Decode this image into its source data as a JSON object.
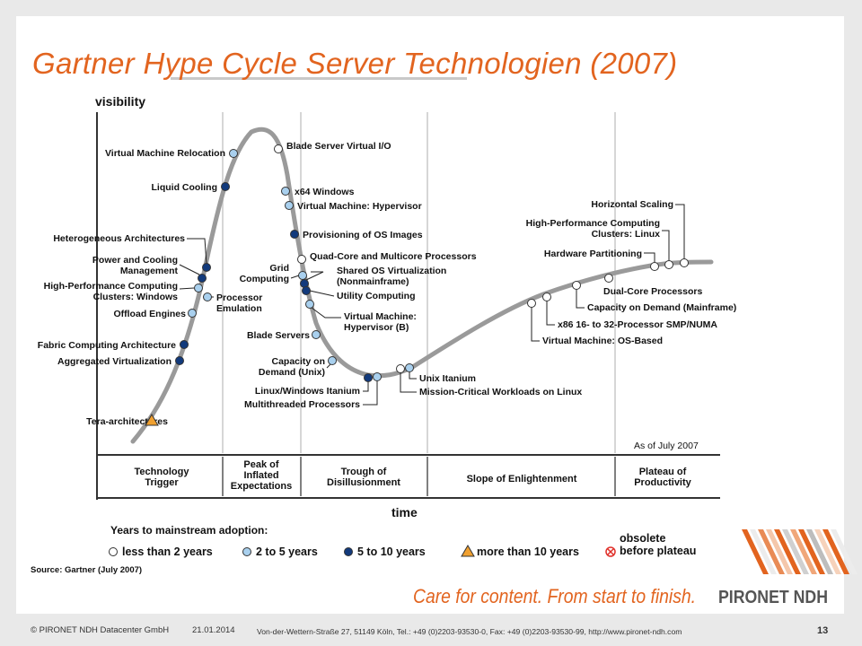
{
  "slide": {
    "title": "Gartner Hype Cycle Server Technologien (2007)",
    "page_number": "13",
    "footer_copyright": "© PIRONET NDH Datacenter GmbH",
    "footer_date": "21.01.2014",
    "footer_address": "Von-der-Wettern-Straße 27, 51149 Köln, Tel.: +49 (0)2203-93530-0, Fax: +49 (0)2203-93530-99, http://www.pironet-ndh.com",
    "tagline": "Care for content. From start to finish.",
    "logo_text": "PIRONET NDH"
  },
  "diagram": {
    "y_axis_label": "visibility",
    "x_axis_label": "time",
    "as_of": "As of July 2007",
    "source": "Source: Gartner (July 2007)",
    "phases": [
      "Technology\nTrigger",
      "Peak of\nInflated\nExpectations",
      "Trough of\nDisillusionment",
      "Slope of Enlightenment",
      "Plateau of\nProductivity"
    ],
    "legend": {
      "title": "Years to mainstream adoption:",
      "items": [
        {
          "label": "less than 2 years",
          "marker": "white-circle"
        },
        {
          "label": "2 to 5 years",
          "marker": "lightblue-circle"
        },
        {
          "label": "5 to 10 years",
          "marker": "darkblue-circle"
        },
        {
          "label": "more than 10 years",
          "marker": "orange-triangle"
        },
        {
          "label": "obsolete\nbefore plateau",
          "marker": "red-x-circle"
        }
      ]
    },
    "colors": {
      "less_than_2": "#ffffff",
      "two_to_five": "#a9d0ee",
      "five_to_ten": "#123a7c",
      "more_than_ten": "#f0a030",
      "obsolete": "#e0302a",
      "curve": "#9a9a9a",
      "title_orange": "#e2641f"
    },
    "technologies": [
      {
        "label": "Tera-architectures",
        "cat": "more_than_ten"
      },
      {
        "label": "Aggregated Virtualization",
        "cat": "five_to_ten"
      },
      {
        "label": "Fabric Computing Architecture",
        "cat": "five_to_ten"
      },
      {
        "label": "Offload Engines",
        "cat": "two_to_five"
      },
      {
        "label": "High-Performance Computing\nClusters: Windows",
        "cat": "two_to_five"
      },
      {
        "label": "Power and Cooling\nManagement",
        "cat": "five_to_ten"
      },
      {
        "label": "Heterogeneous Architectures",
        "cat": "five_to_ten"
      },
      {
        "label": "Liquid Cooling",
        "cat": "five_to_ten"
      },
      {
        "label": "Virtual Machine Relocation",
        "cat": "two_to_five"
      },
      {
        "label": "Blade Server Virtual I/O",
        "cat": "less_than_2"
      },
      {
        "label": "x64 Windows",
        "cat": "two_to_five"
      },
      {
        "label": "Virtual Machine: Hypervisor",
        "cat": "two_to_five"
      },
      {
        "label": "Provisioning of OS Images",
        "cat": "five_to_ten"
      },
      {
        "label": "Quad-Core and Multicore Processors",
        "cat": "less_than_2"
      },
      {
        "label": "Grid\nComputing",
        "cat": "two_to_five"
      },
      {
        "label": "Shared OS Virtualization\n(Nonmainframe)",
        "cat": "five_to_ten"
      },
      {
        "label": "Utility Computing",
        "cat": "five_to_ten"
      },
      {
        "label": "Processor\nEmulation",
        "cat": "two_to_five"
      },
      {
        "label": "Virtual Machine:\nHypervisor (B)",
        "cat": "two_to_five"
      },
      {
        "label": "Blade Servers",
        "cat": "two_to_five"
      },
      {
        "label": "Capacity on\nDemand (Unix)",
        "cat": "two_to_five"
      },
      {
        "label": "Linux/Windows Itanium",
        "cat": "five_to_ten"
      },
      {
        "label": "Multithreaded Processors",
        "cat": "two_to_five"
      },
      {
        "label": "Unix Itanium",
        "cat": "two_to_five"
      },
      {
        "label": "Mission-Critical Workloads on Linux",
        "cat": "less_than_2"
      },
      {
        "label": "Virtual Machine: OS-Based",
        "cat": "less_than_2"
      },
      {
        "label": "x86 16- to 32-Processor SMP/NUMA",
        "cat": "less_than_2"
      },
      {
        "label": "Capacity on Demand (Mainframe)",
        "cat": "less_than_2"
      },
      {
        "label": "Dual-Core Processors",
        "cat": "less_than_2"
      },
      {
        "label": "Hardware Partitioning",
        "cat": "less_than_2"
      },
      {
        "label": "High-Performance Computing\nClusters: Linux",
        "cat": "less_than_2"
      },
      {
        "label": "Horizontal Scaling",
        "cat": "less_than_2"
      }
    ]
  }
}
